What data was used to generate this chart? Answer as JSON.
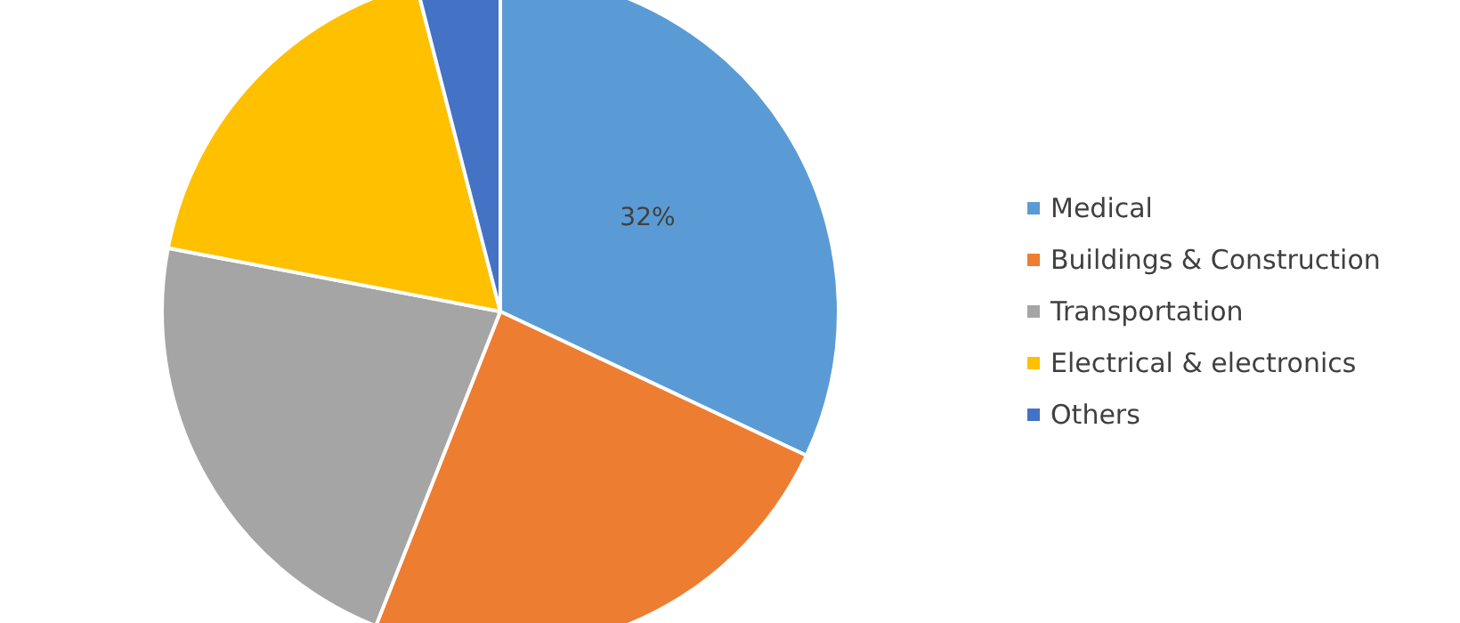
{
  "chart_data": {
    "type": "pie",
    "categories": [
      "Medical",
      "Buildings & Construction",
      "Transportation",
      "Electrical & electronics",
      "Others"
    ],
    "values": [
      32,
      24,
      22,
      18,
      4
    ],
    "colors": [
      "#5b9bd5",
      "#ed7d31",
      "#a5a5a5",
      "#ffc000",
      "#4472c4"
    ],
    "value_labels": [
      "32%",
      null,
      null,
      null,
      null
    ],
    "legend": "right"
  }
}
